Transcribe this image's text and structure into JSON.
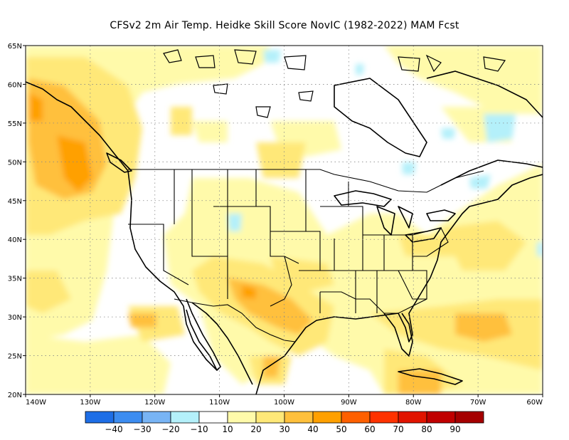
{
  "title": "CFSv2  2m Air Temp. Heidke Skill Score NovIC (1982-2022) MAM Fcst",
  "map": {
    "lon_range": [
      -140,
      -60
    ],
    "lat_range": [
      20,
      65
    ],
    "lat_ticks": [
      {
        "lat": 65,
        "label": "65N"
      },
      {
        "lat": 60,
        "label": "60N"
      },
      {
        "lat": 55,
        "label": "55N"
      },
      {
        "lat": 50,
        "label": "50N"
      },
      {
        "lat": 45,
        "label": "45N"
      },
      {
        "lat": 40,
        "label": "40N"
      },
      {
        "lat": 35,
        "label": "35N"
      },
      {
        "lat": 30,
        "label": "30N"
      },
      {
        "lat": 25,
        "label": "25N"
      },
      {
        "lat": 20,
        "label": "20N"
      }
    ],
    "lon_ticks": [
      {
        "lon": -140,
        "label": "140W"
      },
      {
        "lon": -130,
        "label": "130W"
      },
      {
        "lon": -120,
        "label": "120W"
      },
      {
        "lon": -110,
        "label": "110W"
      },
      {
        "lon": -100,
        "label": "100W"
      },
      {
        "lon": -90,
        "label": "90W"
      },
      {
        "lon": -80,
        "label": "80W"
      },
      {
        "lon": -70,
        "label": "70W"
      },
      {
        "lon": -60,
        "label": "60W"
      }
    ],
    "gridlines": true
  },
  "colorbar": {
    "labels": [
      "−40",
      "−30",
      "−20",
      "−10",
      "10",
      "20",
      "30",
      "40",
      "50",
      "60",
      "70",
      "80",
      "90"
    ],
    "colors": [
      "#1e6ee6",
      "#3c8cf0",
      "#78b4f5",
      "#b4f0fa",
      "#ffffff",
      "#fffaaa",
      "#ffe878",
      "#ffc03c",
      "#ffa000",
      "#ff6000",
      "#ff3200",
      "#e11400",
      "#c00000",
      "#a50000"
    ]
  }
}
